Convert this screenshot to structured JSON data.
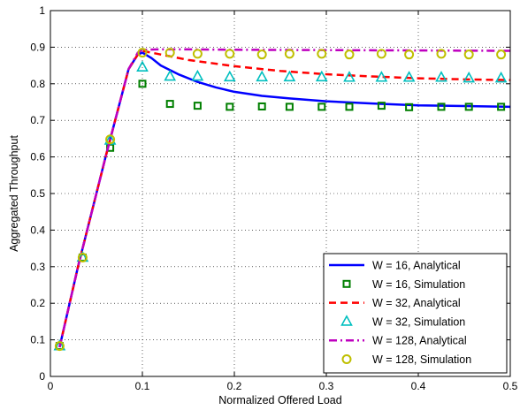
{
  "chart_data": {
    "type": "line",
    "title": "",
    "xlabel": "Normalized Offered Load",
    "ylabel": "Aggregated Throughput",
    "xlim": [
      0,
      0.5
    ],
    "ylim": [
      0,
      1
    ],
    "xticks": [
      0,
      0.1,
      0.2,
      0.3,
      0.4,
      0.5
    ],
    "xtick_labels": [
      "0",
      "0.1",
      "0.2",
      "0.3",
      "0.4",
      "0.5"
    ],
    "yticks": [
      0,
      0.1,
      0.2,
      0.3,
      0.4,
      0.5,
      0.6,
      0.7,
      0.8,
      0.9,
      1
    ],
    "ytick_labels": [
      "0",
      "0.1",
      "0.2",
      "0.3",
      "0.4",
      "0.5",
      "0.6",
      "0.7",
      "0.8",
      "0.9",
      "1"
    ],
    "grid": true,
    "legend_position": "bottom-right",
    "series": [
      {
        "name": "W = 16, Analytical",
        "kind": "line",
        "color": "#0000ff",
        "dash": "solid",
        "x": [
          0.01,
          0.03,
          0.06,
          0.085,
          0.095,
          0.1,
          0.11,
          0.12,
          0.14,
          0.16,
          0.18,
          0.2,
          0.23,
          0.26,
          0.3,
          0.35,
          0.4,
          0.45,
          0.5
        ],
        "y": [
          0.08,
          0.3,
          0.6,
          0.84,
          0.88,
          0.885,
          0.87,
          0.85,
          0.825,
          0.805,
          0.79,
          0.778,
          0.767,
          0.76,
          0.752,
          0.746,
          0.741,
          0.739,
          0.737
        ]
      },
      {
        "name": "W = 16, Simulation",
        "kind": "marker",
        "marker": "square",
        "color": "#007f00",
        "x": [
          0.01,
          0.035,
          0.065,
          0.1,
          0.13,
          0.16,
          0.195,
          0.23,
          0.26,
          0.295,
          0.325,
          0.36,
          0.39,
          0.425,
          0.455,
          0.49
        ],
        "y": [
          0.083,
          0.325,
          0.625,
          0.8,
          0.745,
          0.74,
          0.737,
          0.738,
          0.737,
          0.737,
          0.737,
          0.74,
          0.736,
          0.737,
          0.737,
          0.737
        ]
      },
      {
        "name": "W = 32, Analytical",
        "kind": "line",
        "color": "#ff0000",
        "dash": "dashed",
        "x": [
          0.01,
          0.03,
          0.06,
          0.085,
          0.095,
          0.1,
          0.12,
          0.15,
          0.2,
          0.25,
          0.3,
          0.35,
          0.4,
          0.45,
          0.5
        ],
        "y": [
          0.08,
          0.3,
          0.6,
          0.84,
          0.88,
          0.89,
          0.88,
          0.865,
          0.848,
          0.835,
          0.826,
          0.82,
          0.815,
          0.812,
          0.81
        ]
      },
      {
        "name": "W = 32, Simulation",
        "kind": "marker",
        "marker": "triangle",
        "color": "#00bfbf",
        "x": [
          0.01,
          0.035,
          0.065,
          0.1,
          0.13,
          0.16,
          0.195,
          0.23,
          0.26,
          0.295,
          0.325,
          0.36,
          0.39,
          0.425,
          0.455,
          0.49
        ],
        "y": [
          0.083,
          0.325,
          0.645,
          0.845,
          0.82,
          0.82,
          0.818,
          0.818,
          0.818,
          0.818,
          0.817,
          0.817,
          0.817,
          0.817,
          0.815,
          0.815
        ]
      },
      {
        "name": "W = 128, Analytical",
        "kind": "line",
        "color": "#bf00bf",
        "dash": "dashdot",
        "x": [
          0.01,
          0.03,
          0.06,
          0.085,
          0.095,
          0.1,
          0.12,
          0.15,
          0.2,
          0.3,
          0.4,
          0.5
        ],
        "y": [
          0.08,
          0.3,
          0.6,
          0.84,
          0.885,
          0.893,
          0.894,
          0.894,
          0.893,
          0.892,
          0.891,
          0.89
        ]
      },
      {
        "name": "W = 128, Simulation",
        "kind": "marker",
        "marker": "circle",
        "color": "#bfbf00",
        "x": [
          0.01,
          0.035,
          0.065,
          0.1,
          0.13,
          0.16,
          0.195,
          0.23,
          0.26,
          0.295,
          0.325,
          0.36,
          0.39,
          0.425,
          0.455,
          0.49
        ],
        "y": [
          0.083,
          0.325,
          0.648,
          0.885,
          0.885,
          0.882,
          0.882,
          0.88,
          0.882,
          0.882,
          0.88,
          0.882,
          0.88,
          0.882,
          0.88,
          0.88
        ]
      }
    ]
  }
}
